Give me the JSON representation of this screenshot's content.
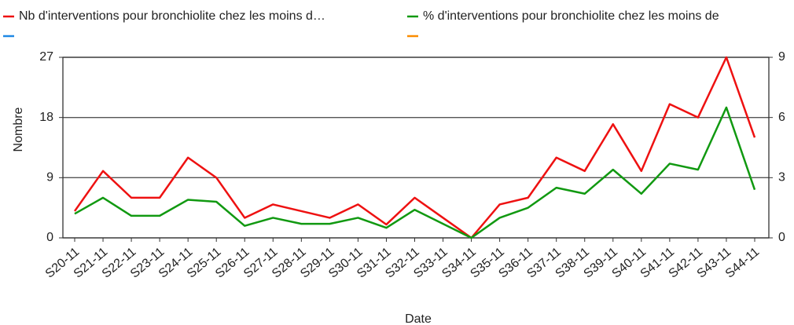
{
  "chart_data": {
    "type": "line",
    "y_label": "Nombre",
    "x_label": "Date",
    "categories": [
      "S20-11",
      "S21-11",
      "S22-11",
      "S23-11",
      "S24-11",
      "S25-11",
      "S26-11",
      "S27-11",
      "S28-11",
      "S29-11",
      "S30-11",
      "S31-11",
      "S32-11",
      "S33-11",
      "S34-11",
      "S35-11",
      "S36-11",
      "S37-11",
      "S38-11",
      "S39-11",
      "S40-11",
      "S41-11",
      "S42-11",
      "S43-11",
      "S44-11"
    ],
    "series": [
      {
        "name": "Nb d'interventions pour bronchiolite chez les moins d…",
        "color": "#ee1111",
        "axis": "y",
        "values": [
          4,
          10,
          6,
          6,
          12,
          9,
          3,
          5,
          4,
          3,
          5,
          2,
          6,
          3,
          0,
          5,
          6,
          12,
          10,
          17,
          10,
          20,
          18,
          27,
          15
        ]
      },
      {
        "name": "%  d'interventions pour bronchiolite chez les moins de",
        "color": "#119911",
        "axis": "y2",
        "values": [
          1.2,
          2.0,
          1.1,
          1.1,
          1.9,
          1.8,
          0.6,
          1.0,
          0.7,
          0.7,
          1.0,
          0.5,
          1.4,
          0.7,
          0,
          1.0,
          1.5,
          2.5,
          2.2,
          3.4,
          2.2,
          3.7,
          3.4,
          6.5,
          2.4
        ]
      }
    ],
    "ylim": [
      0,
      27
    ],
    "yticks": [
      0,
      9,
      18,
      27
    ],
    "y2lim": [
      0,
      9
    ],
    "y2ticks": [
      0,
      3,
      6,
      9
    ],
    "grid": true
  }
}
